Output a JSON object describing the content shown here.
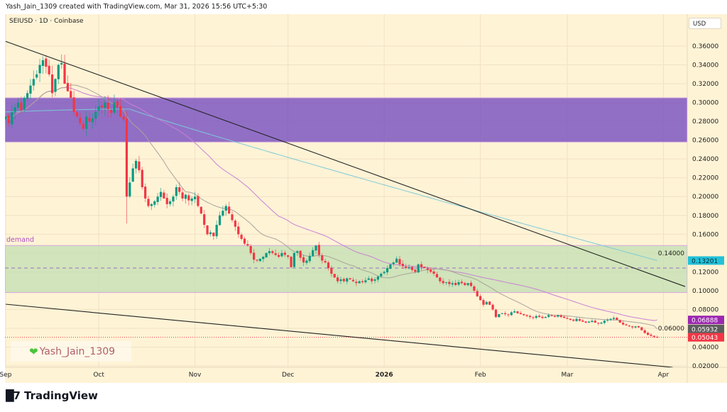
{
  "header": {
    "credit": "Yash_Jain_1309 created with TradingView.com, Mar 31, 2026 15:56 UTC+5:30"
  },
  "legend": {
    "symbol": "SEIUSD · 1D · Coinbase"
  },
  "currency_button": "USD",
  "watermark": {
    "icon": "green-heart-icon",
    "text": "Yash_Jain_1309"
  },
  "footer": {
    "brand": "TradingView",
    "logo_icon": "tradingview-logo-icon"
  },
  "colors": {
    "background": "#fff3d6",
    "up": "#089981",
    "down": "#f23645",
    "supply_zone": "#7e57c2",
    "demand_zone": "#c5e0b4",
    "ma_fast": "#a9a39a",
    "ma_mid": "#c77fd6",
    "ma_slow": "#7ccbd6",
    "trendline": "#222222"
  },
  "chart_data": {
    "type": "candlestick",
    "symbol": "SEIUSD",
    "interval": "1D",
    "exchange": "Coinbase",
    "start_date": "2025-09-01",
    "ylim": [
      0.01,
      0.375
    ],
    "grid": true,
    "y_ticks": [
      "0.02000",
      "0.04000",
      "0.06000",
      "0.08000",
      "0.10000",
      "0.12000",
      "0.14000",
      "0.16000",
      "0.18000",
      "0.20000",
      "0.22000",
      "0.24000",
      "0.26000",
      "0.28000",
      "0.30000",
      "0.32000",
      "0.34000",
      "0.36000"
    ],
    "x_ticks": [
      {
        "label": "Sep",
        "date": "2025-09-01"
      },
      {
        "label": "Oct",
        "date": "2025-10-01"
      },
      {
        "label": "Nov",
        "date": "2025-11-01"
      },
      {
        "label": "Dec",
        "date": "2025-12-01"
      },
      {
        "label": "2026",
        "date": "2026-01-01"
      },
      {
        "label": "Feb",
        "date": "2026-02-01"
      },
      {
        "label": "Mar",
        "date": "2026-03-01"
      },
      {
        "label": "Apr",
        "date": "2026-04-01"
      }
    ],
    "closes": [
      0.285,
      0.278,
      0.29,
      0.295,
      0.3,
      0.292,
      0.305,
      0.31,
      0.318,
      0.325,
      0.33,
      0.34,
      0.345,
      0.338,
      0.33,
      0.31,
      0.325,
      0.34,
      0.342,
      0.32,
      0.312,
      0.305,
      0.29,
      0.285,
      0.278,
      0.272,
      0.285,
      0.28,
      0.283,
      0.29,
      0.296,
      0.295,
      0.3,
      0.293,
      0.289,
      0.3,
      0.295,
      0.285,
      0.282,
      0.2,
      0.215,
      0.23,
      0.238,
      0.228,
      0.21,
      0.198,
      0.19,
      0.192,
      0.195,
      0.2,
      0.205,
      0.198,
      0.192,
      0.195,
      0.2,
      0.21,
      0.205,
      0.198,
      0.202,
      0.196,
      0.198,
      0.2,
      0.19,
      0.182,
      0.17,
      0.16,
      0.162,
      0.158,
      0.17,
      0.18,
      0.185,
      0.19,
      0.182,
      0.175,
      0.168,
      0.16,
      0.155,
      0.15,
      0.148,
      0.14,
      0.133,
      0.132,
      0.134,
      0.136,
      0.14,
      0.142,
      0.14,
      0.138,
      0.136,
      0.14,
      0.138,
      0.136,
      0.125,
      0.14,
      0.142,
      0.135,
      0.13,
      0.132,
      0.137,
      0.143,
      0.148,
      0.138,
      0.132,
      0.13,
      0.124,
      0.118,
      0.114,
      0.11,
      0.112,
      0.11,
      0.113,
      0.112,
      0.11,
      0.108,
      0.11,
      0.109,
      0.111,
      0.113,
      0.11,
      0.112,
      0.115,
      0.118,
      0.12,
      0.124,
      0.128,
      0.13,
      0.134,
      0.128,
      0.126,
      0.124,
      0.125,
      0.122,
      0.12,
      0.128,
      0.125,
      0.124,
      0.122,
      0.12,
      0.118,
      0.114,
      0.11,
      0.108,
      0.109,
      0.107,
      0.108,
      0.106,
      0.109,
      0.108,
      0.106,
      0.108,
      0.105,
      0.1,
      0.094,
      0.09,
      0.085,
      0.088,
      0.085,
      0.08,
      0.072,
      0.075,
      0.076,
      0.075,
      0.074,
      0.077,
      0.078,
      0.076,
      0.075,
      0.074,
      0.073,
      0.072,
      0.071,
      0.073,
      0.072,
      0.071,
      0.072,
      0.074,
      0.073,
      0.072,
      0.074,
      0.072,
      0.071,
      0.07,
      0.069,
      0.068,
      0.07,
      0.068,
      0.067,
      0.066,
      0.067,
      0.068,
      0.066,
      0.065,
      0.066,
      0.068,
      0.069,
      0.07,
      0.071,
      0.069,
      0.066,
      0.064,
      0.063,
      0.062,
      0.061,
      0.062,
      0.061,
      0.058,
      0.055,
      0.053,
      0.052,
      0.051,
      0.05043
    ],
    "zones": [
      {
        "name": "supply",
        "top": 0.305,
        "bottom": 0.258,
        "label": ""
      },
      {
        "name": "demand",
        "top": 0.148,
        "bottom": 0.098,
        "label": "demand"
      }
    ],
    "horizontal_lines": [
      {
        "price": 0.124,
        "style": "dashed",
        "color": "#9c6fc0"
      },
      {
        "price": 0.05043,
        "style": "dotted",
        "color": "#f23645"
      }
    ],
    "trendlines": [
      {
        "from": [
          "2025-09-01",
          0.365
        ],
        "to": [
          "2026-04-08",
          0.1044
        ]
      },
      {
        "from": [
          "2025-09-01",
          0.0856
        ],
        "to": [
          "2026-04-04",
          0.0185
        ]
      }
    ],
    "moving_averages": [
      {
        "key": "slow",
        "last": "0.13201",
        "first_value": 0.29,
        "peak_value": 0.293,
        "color": "#22bfd6"
      },
      {
        "key": "mid",
        "last": "0.06888",
        "period": 50,
        "color": "#9c27b0"
      },
      {
        "key": "fast",
        "last": "0.05932",
        "period": 20,
        "color": "#5d5d5d"
      }
    ],
    "last_price": "0.05043"
  }
}
